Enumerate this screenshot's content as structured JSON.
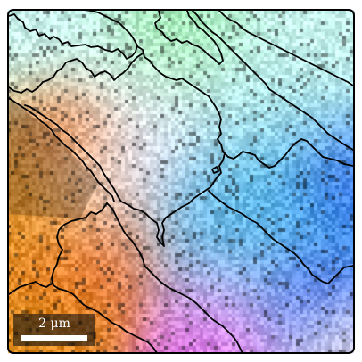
{
  "figure": {
    "scale_bar": {
      "label": "2 μm"
    },
    "colors": {
      "boundary": "#000000",
      "scale_bar_background": "#201c18",
      "scale_bar": "#ffffff"
    },
    "phases": [
      {
        "color": "#c8f4ee"
      },
      {
        "color": "#98f0a8"
      },
      {
        "color": "#f0e8f4"
      },
      {
        "color": "#30a8e8"
      },
      {
        "color": "#e09020"
      },
      {
        "color": "#f06828"
      },
      {
        "color": "#e848f0"
      },
      {
        "color": "#2850e8"
      }
    ]
  }
}
